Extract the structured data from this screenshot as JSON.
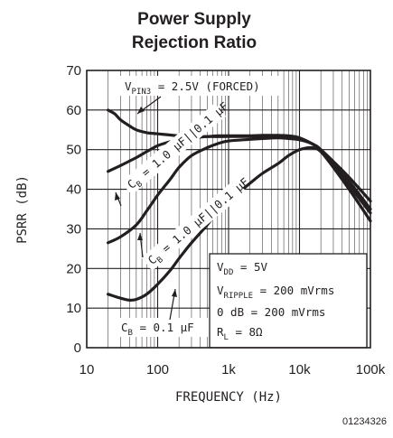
{
  "chart_data": {
    "type": "line",
    "title_line1": "Power Supply",
    "title_line2": "Rejection Ratio",
    "xlabel": "FREQUENCY (Hz)",
    "ylabel": "PSRR (dB)",
    "x_scale": "log",
    "xlim": [
      10,
      100000
    ],
    "ylim": [
      0,
      70
    ],
    "x_ticks": [
      10,
      100,
      1000,
      10000,
      100000
    ],
    "x_tick_labels": [
      "10",
      "100",
      "1k",
      "10k",
      "100k"
    ],
    "y_ticks": [
      0,
      10,
      20,
      30,
      40,
      50,
      60,
      70
    ],
    "y_tick_labels": [
      "0",
      "10",
      "20",
      "30",
      "40",
      "50",
      "60",
      "70"
    ],
    "grid": true,
    "figure_id": "01234326",
    "conditions": {
      "vdd": {
        "main": "V",
        "sub": "DD",
        "rest": " = 5V"
      },
      "vripple": {
        "main": "V",
        "sub": "RIPPLE",
        "rest": " = 200 mVrms"
      },
      "zero_db": "0 dB = 200 mVrms",
      "rl": {
        "main": "R",
        "sub": "L",
        "rest": " = 8Ω"
      }
    },
    "series": [
      {
        "name": "VPIN3 = 2.5V (FORCED)",
        "label": {
          "main": "V",
          "sub": "PIN3",
          "rest": " = 2.5V (FORCED)"
        },
        "x": [
          20,
          25,
          30,
          40,
          50,
          70,
          100,
          150,
          200,
          300,
          500,
          1000,
          2000,
          3000,
          5000,
          7000,
          10000,
          15000,
          20000,
          30000,
          50000,
          100000
        ],
        "y": [
          60,
          59,
          57.5,
          56,
          55,
          54.3,
          54,
          53.7,
          53.5,
          53.4,
          53.3,
          53.3,
          53.3,
          53.3,
          53.3,
          53.2,
          52.8,
          51.5,
          50,
          47,
          43,
          37
        ]
      },
      {
        "name": "CB = 1.0 µF||0.1 µF (upper)",
        "label": {
          "main": "C",
          "sub": "B",
          "rest": " = 1.0 µF||0.1 µF"
        },
        "x": [
          20,
          30,
          50,
          70,
          100,
          150,
          200,
          300,
          500,
          700,
          1000,
          2000,
          3000,
          5000,
          7000,
          10000,
          15000,
          20000,
          30000,
          50000,
          100000
        ],
        "y": [
          44.5,
          46,
          48,
          49.5,
          51,
          52,
          52.5,
          53,
          53.3,
          53.5,
          53.5,
          53.5,
          53.6,
          53.6,
          53.5,
          53,
          51.5,
          50,
          46.5,
          42,
          35
        ]
      },
      {
        "name": "CB = 1.0 µF||0.1 µF (lower)",
        "label": {
          "main": "C",
          "sub": "B",
          "rest": " = 1.0 µF||0.1 µF"
        },
        "x": [
          20,
          30,
          50,
          70,
          100,
          150,
          200,
          300,
          500,
          700,
          1000,
          2000,
          3000,
          5000,
          7000,
          10000,
          15000,
          20000,
          30000,
          50000,
          100000
        ],
        "y": [
          26.5,
          28,
          31,
          34.5,
          38.5,
          42.5,
          45.5,
          48.5,
          50.5,
          51.5,
          52.2,
          52.6,
          52.8,
          53,
          52.8,
          52.5,
          51.5,
          50,
          46,
          41,
          34
        ]
      },
      {
        "name": "CB = 0.1 µF",
        "label": {
          "main": "C",
          "sub": "B",
          "rest": " = 0.1 µF"
        },
        "x": [
          20,
          30,
          40,
          50,
          70,
          100,
          150,
          200,
          300,
          500,
          700,
          1000,
          2000,
          3000,
          5000,
          7000,
          10000,
          15000,
          20000,
          30000,
          50000,
          100000
        ],
        "y": [
          13.5,
          12.5,
          12,
          12.2,
          13.5,
          16,
          19.5,
          22.5,
          26.5,
          31,
          34.5,
          37,
          41.5,
          44,
          46.5,
          48.5,
          50,
          50.5,
          49.5,
          45.5,
          40,
          32
        ]
      }
    ]
  }
}
